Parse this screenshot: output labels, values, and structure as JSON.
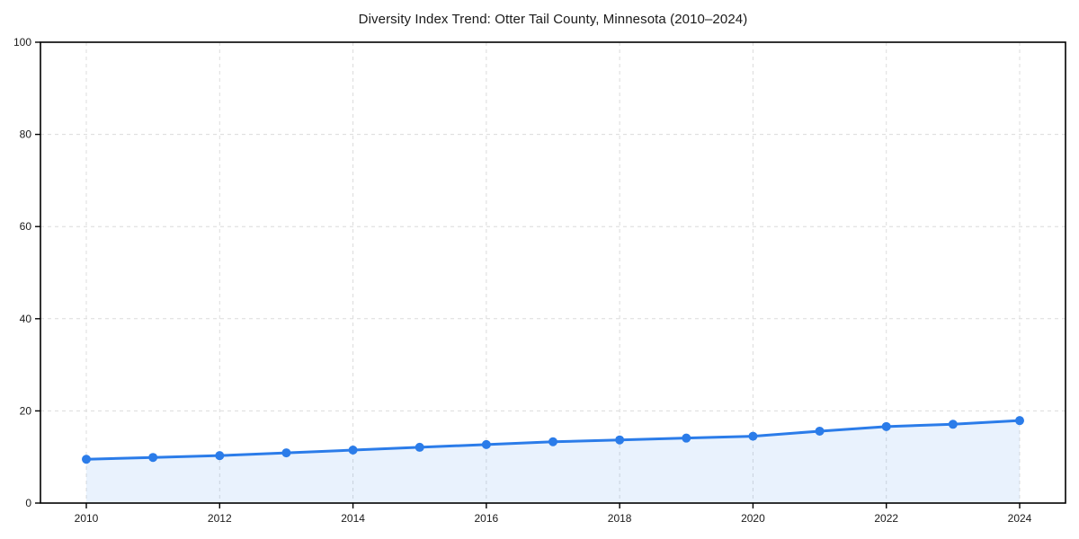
{
  "page": {
    "background": "#ffffff"
  },
  "chart_data": {
    "type": "line",
    "title": "Diversity Index Trend: Otter Tail County, Minnesota (2010–2024)",
    "x": [
      2010,
      2011,
      2012,
      2013,
      2014,
      2015,
      2016,
      2017,
      2018,
      2019,
      2020,
      2021,
      2022,
      2023,
      2024
    ],
    "values": [
      9.5,
      9.9,
      10.3,
      10.9,
      11.5,
      12.1,
      12.7,
      13.3,
      13.7,
      14.1,
      14.5,
      15.6,
      16.6,
      17.1,
      17.9
    ],
    "xlabel": "",
    "ylabel": "",
    "ylim": [
      0,
      100
    ],
    "yticks": [
      0,
      20,
      40,
      60,
      80,
      100
    ],
    "xticks": [
      2010,
      2012,
      2014,
      2016,
      2018,
      2020,
      2022,
      2024
    ],
    "grid": "dashed",
    "legend": "none",
    "marker": "circle",
    "area_fill": true,
    "colors": {
      "line": "#2b7ce9",
      "marker": "#2b7ce9",
      "area": "rgba(43,124,233,0.10)",
      "grid": "#dcdcdc",
      "axis": "#000000",
      "text": "#1a1a1a"
    }
  }
}
